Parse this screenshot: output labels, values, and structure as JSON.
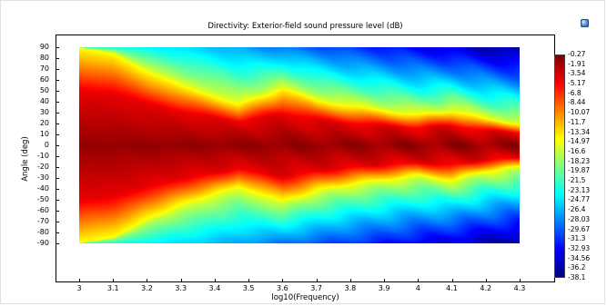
{
  "toolbar": {
    "icon": "camera-icon"
  },
  "chart_data": {
    "type": "heatmap",
    "title": "Directivity: Exterior-field sound pressure level (dB)",
    "xlabel": "log10(Frequency)",
    "ylabel": "Angle (deg)",
    "xlim": [
      3,
      4.3
    ],
    "ylim": [
      -90,
      90
    ],
    "x_ticks": [
      "3",
      "3.1",
      "3.2",
      "3.3",
      "3.4",
      "3.5",
      "3.6",
      "3.7",
      "3.8",
      "3.9",
      "4",
      "4.1",
      "4.2",
      "4.3"
    ],
    "y_ticks": [
      "90",
      "80",
      "70",
      "60",
      "50",
      "40",
      "30",
      "20",
      "10",
      "0",
      "-10",
      "-20",
      "-30",
      "-40",
      "-50",
      "-60",
      "-70",
      "-80",
      "-90"
    ],
    "colorbar": {
      "ticks": [
        "-0.27",
        "-1.91",
        "-3.54",
        "-5.17",
        "-6.8",
        "-8.44",
        "-10.07",
        "-11.7",
        "-13.34",
        "-14.97",
        "-16.6",
        "-18.23",
        "-19.87",
        "-21.5",
        "-23.13",
        "-24.77",
        "-26.4",
        "-28.03",
        "-29.67",
        "-31.3",
        "-32.93",
        "-34.56",
        "-36.2",
        "-38.1"
      ],
      "min": -38.1,
      "max": -0.27,
      "colormap": "jet"
    },
    "beam_halfwidth_deg": {
      "x": [
        3.0,
        3.1,
        3.2,
        3.3,
        3.4,
        3.47,
        3.6,
        3.7,
        3.8,
        3.9,
        4.0,
        4.1,
        4.2,
        4.3
      ],
      "angle": [
        90,
        85,
        68,
        55,
        45,
        38,
        52,
        42,
        36,
        32,
        28,
        32,
        24,
        20
      ]
    }
  }
}
